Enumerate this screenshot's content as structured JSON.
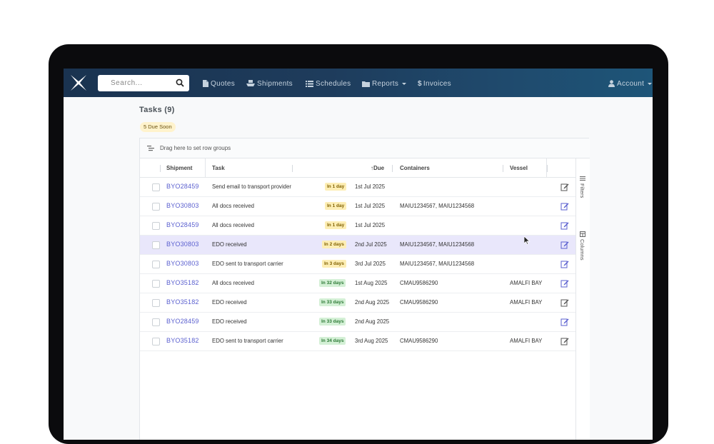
{
  "search": {
    "placeholder": "Search..."
  },
  "nav": {
    "quotes": "Quotes",
    "shipments": "Shipments",
    "schedules": "Schedules",
    "reports": "Reports",
    "invoices": "Invoices",
    "account": "Account"
  },
  "page": {
    "title": "Tasks (9)",
    "due_badge": "5 Due Soon"
  },
  "grid": {
    "toolbar_text": "Drag here to set row groups",
    "columns": {
      "shipment": "Shipment",
      "task": "Task",
      "due": "Due",
      "containers": "Containers",
      "vessel": "Vessel"
    },
    "side": {
      "filters": "Filters",
      "columns": "Columns"
    },
    "rows": [
      {
        "shipment": "BYO28459",
        "task": "Send email to transport provider",
        "badge": "In 1 day",
        "date": "1st Jul 2025",
        "containers": "",
        "vessel": ""
      },
      {
        "shipment": "BYO30803",
        "task": "All docs received",
        "badge": "In 1 day",
        "date": "1st Jul 2025",
        "containers": "MAIU1234567, MAIU1234568",
        "vessel": ""
      },
      {
        "shipment": "BYO28459",
        "task": "All docs received",
        "badge": "In 1 day",
        "date": "1st Jul 2025",
        "containers": "",
        "vessel": ""
      },
      {
        "shipment": "BYO30803",
        "task": "EDO received",
        "badge": "In 2 days",
        "date": "2nd Jul 2025",
        "containers": "MAIU1234567, MAIU1234568",
        "vessel": ""
      },
      {
        "shipment": "BYO30803",
        "task": "EDO sent to transport carrier",
        "badge": "In 3 days",
        "date": "3rd Jul 2025",
        "containers": "MAIU1234567, MAIU1234568",
        "vessel": ""
      },
      {
        "shipment": "BYO35182",
        "task": "All docs received",
        "badge": "In 32 days",
        "date": "1st Aug 2025",
        "containers": "CMAU9586290",
        "vessel": "AMALFI BAY"
      },
      {
        "shipment": "BYO35182",
        "task": "EDO received",
        "badge": "In 33 days",
        "date": "2nd Aug 2025",
        "containers": "CMAU9586290",
        "vessel": "AMALFI BAY"
      },
      {
        "shipment": "BYO28459",
        "task": "EDO received",
        "badge": "In 33 days",
        "date": "2nd Aug 2025",
        "containers": "",
        "vessel": ""
      },
      {
        "shipment": "BYO35182",
        "task": "EDO sent to transport carrier",
        "badge": "In 34 days",
        "date": "3rd Aug 2025",
        "containers": "CMAU9586290",
        "vessel": "AMALFI BAY"
      }
    ]
  },
  "colors": {
    "navbar_start": "#1a3350",
    "navbar_end": "#1e5578",
    "link": "#5a5fcf",
    "badge_soon_bg": "#fdeeb5",
    "badge_later_bg": "#d4f0d6",
    "highlight_row": "#e9e7fb"
  },
  "icons": {
    "logo": "x-logo-icon",
    "search": "search-icon",
    "quotes": "file-icon",
    "shipments": "ship-icon",
    "schedules": "list-icon",
    "reports": "folder-icon",
    "invoices": "dollar-icon",
    "account": "user-icon",
    "edit": "edit-icon"
  }
}
